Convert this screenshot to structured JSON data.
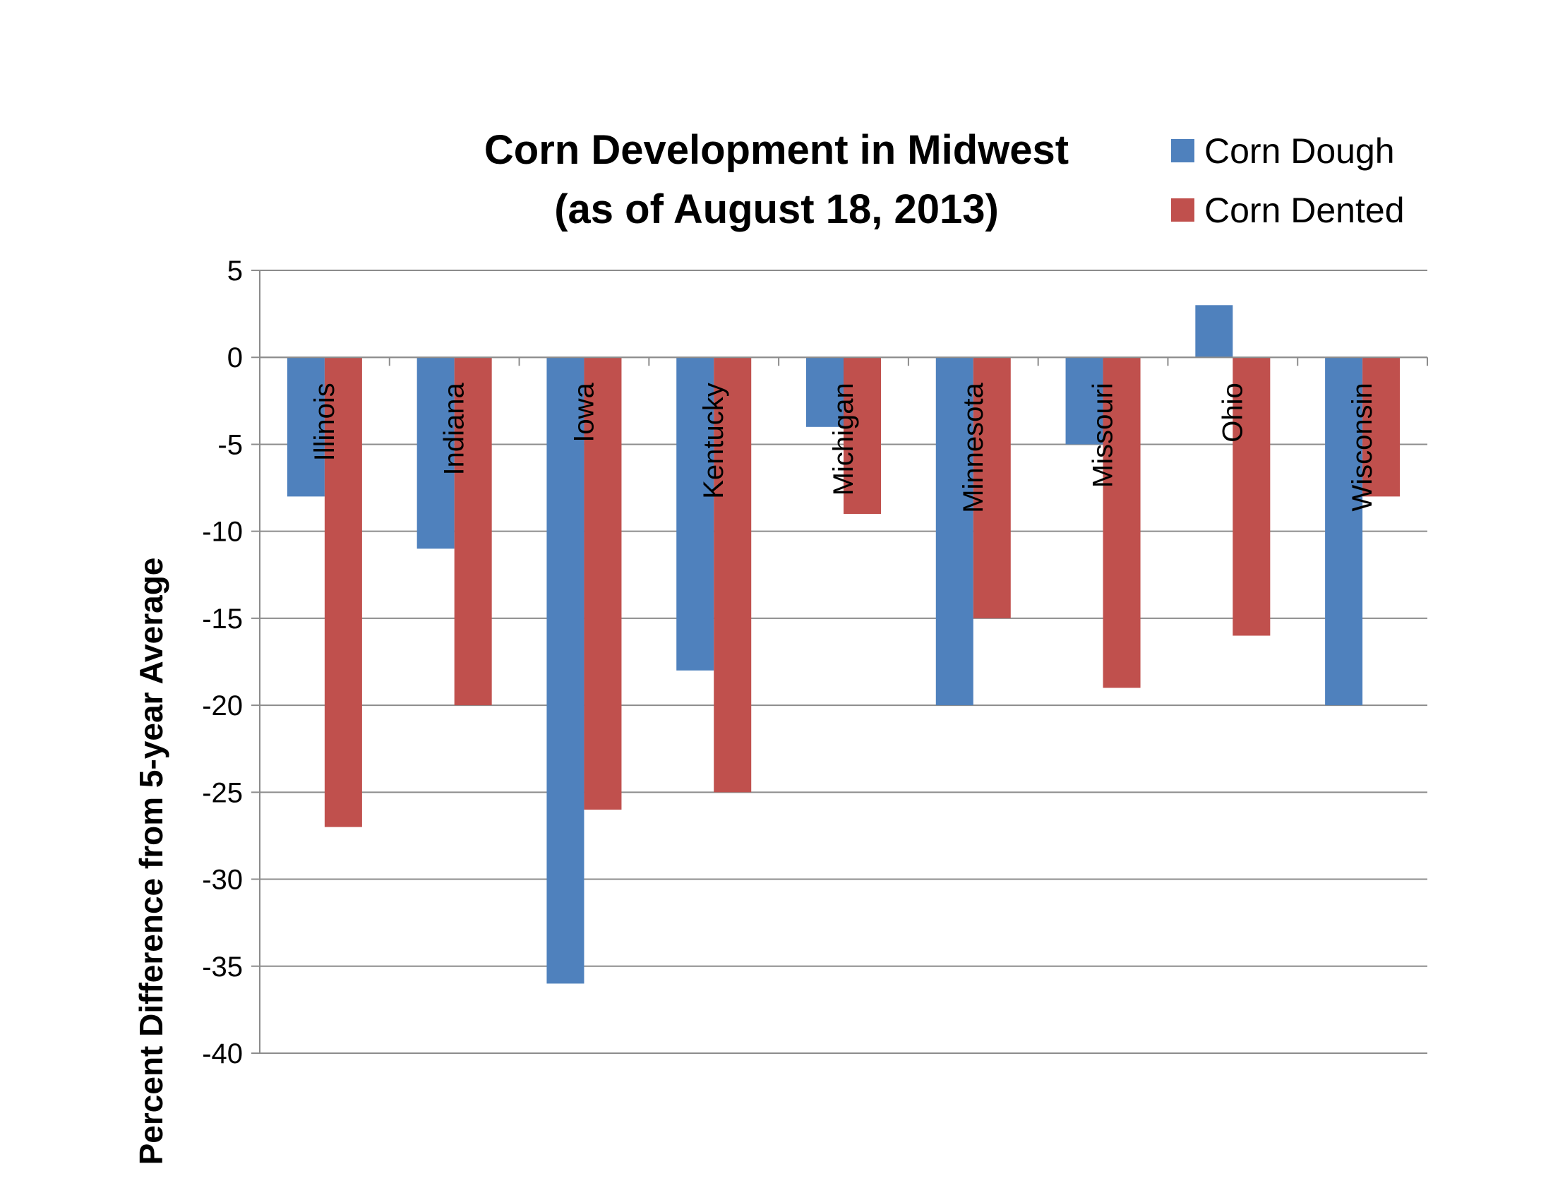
{
  "chart_data": {
    "type": "bar",
    "title": [
      "Corn Development in Midwest",
      "(as of August 18, 2013)"
    ],
    "xlabel": "",
    "ylabel": "Percent Difference from 5-year Average",
    "ylim": [
      -40,
      5
    ],
    "yticks": [
      "5",
      "0",
      "-5",
      "-10",
      "-15",
      "-20",
      "-25",
      "-30",
      "-35",
      "-40"
    ],
    "grid": true,
    "legend_position": "top-right",
    "categories": [
      "Illinois",
      "Indiana",
      "Iowa",
      "Kentucky",
      "Michigan",
      "Minnesota",
      "Missouri",
      "Ohio",
      "Wisconsin"
    ],
    "series": [
      {
        "name": "Corn Dough",
        "color": "#4F81BD",
        "values": [
          -8,
          -11,
          -36,
          -18,
          -4,
          -20,
          -5,
          3,
          -20
        ]
      },
      {
        "name": "Corn Dented",
        "color": "#C0504D",
        "values": [
          -27,
          -20,
          -26,
          -25,
          -9,
          -15,
          -19,
          -16,
          -8
        ]
      }
    ]
  }
}
